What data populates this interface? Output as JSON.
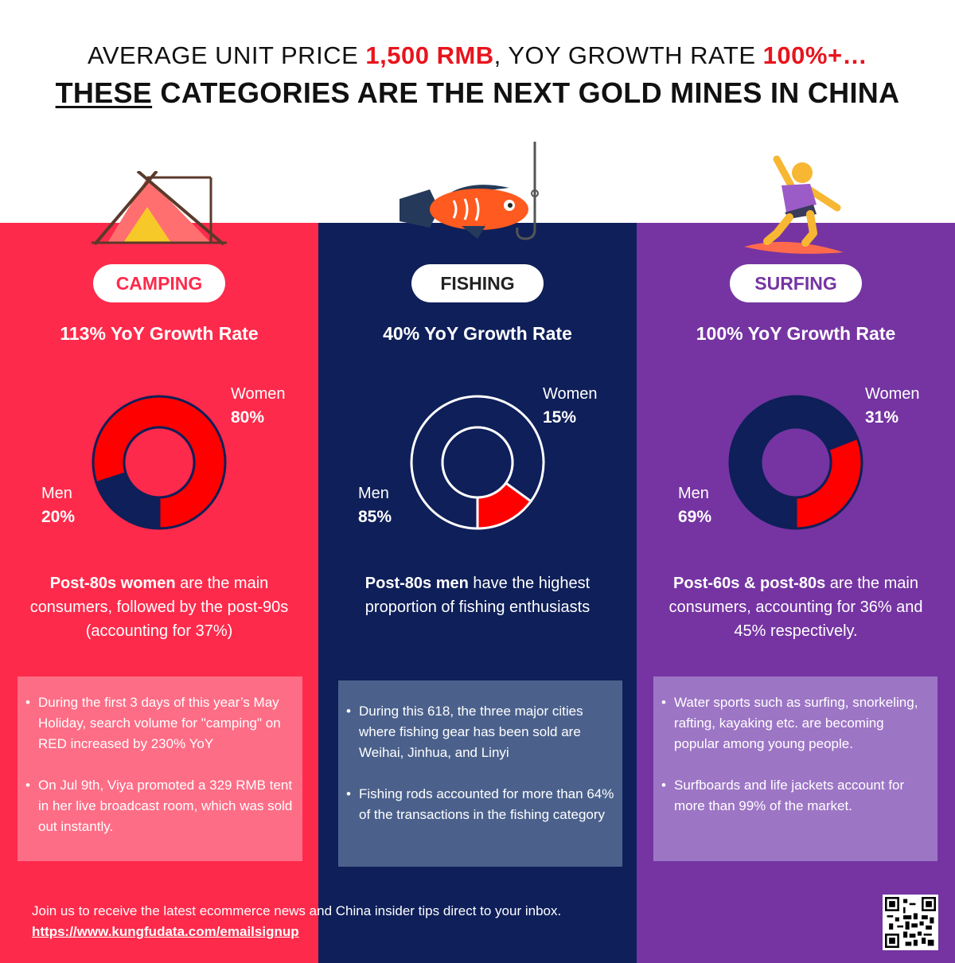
{
  "header": {
    "line1_parts": [
      "AVERAGE UNIT PRICE ",
      "1,500 RMB",
      ", YOY GROWTH RATE ",
      "100%+…"
    ],
    "line2_underlined": "THESE",
    "line2_rest": " CATEGORIES ARE THE NEXT GOLD MINES IN CHINA"
  },
  "colors": {
    "camping_bg": "#fe2a4b",
    "fishing_bg": "#0e1f59",
    "surfing_bg": "#7534a2",
    "women": "#ff0000",
    "men": "#0e1f59"
  },
  "categories": [
    {
      "name": "CAMPING",
      "growth": "113% YoY Growth Rate",
      "women_label": "Women",
      "women_pct": "80%",
      "men_label": "Men",
      "men_pct": "20%",
      "desc_bold": "Post-80s women",
      "desc_rest": " are the main consumers, followed by the post-90s (accounting for 37%)",
      "bullets": [
        "During the first 3 days of this year’s May Holiday, search volume for \"camping\" on RED increased by 230% YoY",
        "On Jul 9th, Viya promoted a 329 RMB tent in her live broadcast room, which was sold out instantly."
      ]
    },
    {
      "name": "FISHING",
      "growth": "40% YoY Growth Rate",
      "women_label": "Women",
      "women_pct": "15%",
      "men_label": "Men",
      "men_pct": "85%",
      "desc_bold": "Post-80s men",
      "desc_rest": " have the highest proportion of fishing enthusiasts",
      "bullets": [
        "During this 618, the three major cities where fishing gear has been sold are Weihai, Jinhua, and Linyi",
        "Fishing rods accounted for more than 64% of the transactions in the fishing category"
      ]
    },
    {
      "name": "SURFING",
      "growth": "100% YoY Growth Rate",
      "women_label": "Women",
      "women_pct": "31%",
      "men_label": "Men",
      "men_pct": "69%",
      "desc_bold": "Post-60s & post-80s",
      "desc_rest": " are the main consumers, accounting for 36% and 45% respectively.",
      "bullets": [
        "Water sports such as surfing, snorkeling, rafting, kayaking etc. are becoming popular among young people.",
        "Surfboards and life jackets account for more than 99% of the market."
      ]
    }
  ],
  "chart_data": [
    {
      "type": "pie",
      "title": "CAMPING",
      "categories": [
        "Women",
        "Men"
      ],
      "values": [
        80,
        20
      ]
    },
    {
      "type": "pie",
      "title": "FISHING",
      "categories": [
        "Women",
        "Men"
      ],
      "values": [
        15,
        85
      ]
    },
    {
      "type": "pie",
      "title": "SURFING",
      "categories": [
        "Women",
        "Men"
      ],
      "values": [
        31,
        69
      ]
    }
  ],
  "footer": {
    "text": "Join us to receive the latest ecommerce news and China insider tips direct to your inbox.",
    "link": "https://www.kungfudata.com/emailsignup"
  },
  "icons": [
    "tent-icon",
    "fish-on-hook-icon",
    "surfer-icon",
    "qr-code-icon"
  ]
}
